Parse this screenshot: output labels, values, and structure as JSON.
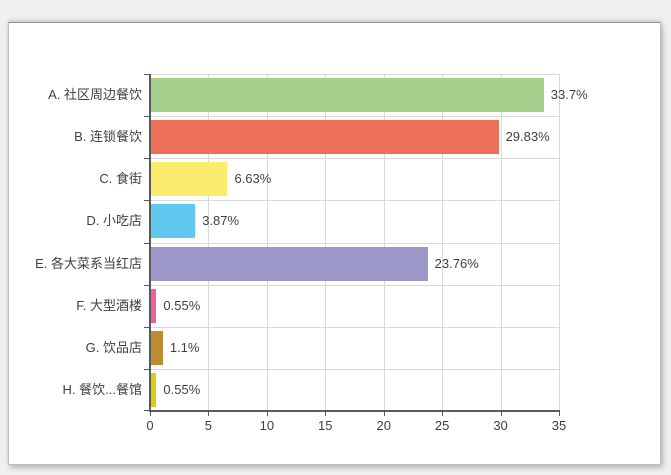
{
  "window": {
    "background_color": "#efefef",
    "panel_color": "#ffffff"
  },
  "chart_data": {
    "type": "bar",
    "orientation": "horizontal",
    "title": "",
    "legend": false,
    "grid": true,
    "categories": [
      "A. 社区周边餐饮",
      "B. 连锁餐饮",
      "C. 食街",
      "D. 小吃店",
      "E. 各大菜系当红店",
      "F. 大型酒楼",
      "G. 饮品店",
      "H. 餐饮...餐馆"
    ],
    "values": [
      33.7,
      29.83,
      6.63,
      3.87,
      23.76,
      0.55,
      1.1,
      0.55
    ],
    "value_labels": [
      "33.7%",
      "29.83%",
      "6.63%",
      "3.87%",
      "23.76%",
      "0.55%",
      "1.1%",
      "0.55%"
    ],
    "bar_colors": [
      "#a8d08d",
      "#ec7057",
      "#fbec6d",
      "#61c8f0",
      "#9b97c9",
      "#ee5fa0",
      "#bd8c30",
      "#ddcf05"
    ],
    "xlim": [
      0,
      35
    ],
    "xticks": [
      0,
      5,
      10,
      15,
      20,
      25,
      30,
      35
    ],
    "xtick_labels": [
      "0",
      "5",
      "10",
      "15",
      "20",
      "25",
      "30",
      "35"
    ],
    "xlabel": "",
    "ylabel": "",
    "axis_color": "#595959",
    "grid_color": "#d9d9d9",
    "text_color": "#3f3f3f"
  }
}
